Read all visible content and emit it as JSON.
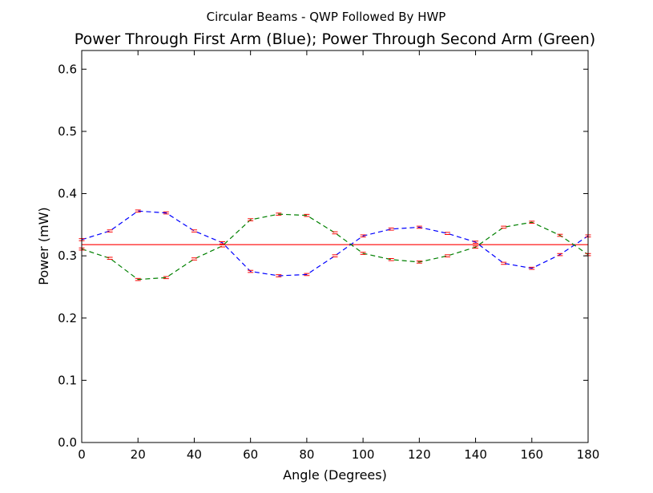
{
  "chart_data": {
    "type": "line",
    "suptitle": "Circular Beams - QWP Followed By HWP",
    "title": "Power Through First Arm (Blue); Power Through Second Arm (Green)",
    "xlabel": "Angle (Degrees)",
    "ylabel": "Power (mW)",
    "xlim": [
      0,
      180
    ],
    "ylim": [
      0.0,
      0.63
    ],
    "xticks": [
      0,
      20,
      40,
      60,
      80,
      100,
      120,
      140,
      160,
      180
    ],
    "xtick_labels": [
      "0",
      "20",
      "40",
      "60",
      "80",
      "100",
      "120",
      "140",
      "160",
      "180"
    ],
    "yticks": [
      0.0,
      0.1,
      0.2,
      0.3,
      0.4,
      0.5,
      0.6
    ],
    "ytick_labels": [
      "0.0",
      "0.1",
      "0.2",
      "0.3",
      "0.4",
      "0.5",
      "0.6"
    ],
    "grid": false,
    "x": [
      0,
      10,
      20,
      30,
      40,
      50,
      60,
      70,
      80,
      90,
      100,
      110,
      120,
      130,
      140,
      150,
      160,
      170,
      180
    ],
    "series": [
      {
        "color": "#0000ff",
        "style": "dashed",
        "values": [
          0.326,
          0.34,
          0.372,
          0.369,
          0.34,
          0.321,
          0.275,
          0.268,
          0.27,
          0.3,
          0.332,
          0.343,
          0.346,
          0.336,
          0.322,
          0.288,
          0.28,
          0.302,
          0.332
        ],
        "error_bar_color": "#ff0000"
      },
      {
        "color": "#008000",
        "style": "dashed",
        "values": [
          0.311,
          0.296,
          0.262,
          0.265,
          0.295,
          0.316,
          0.358,
          0.367,
          0.365,
          0.337,
          0.304,
          0.294,
          0.29,
          0.3,
          0.314,
          0.346,
          0.354,
          0.333,
          0.302
        ],
        "error_bar_color": "#ff0000"
      }
    ],
    "hlines": [
      {
        "y": 0.318,
        "color": "#ff0000",
        "style": "solid"
      }
    ]
  }
}
